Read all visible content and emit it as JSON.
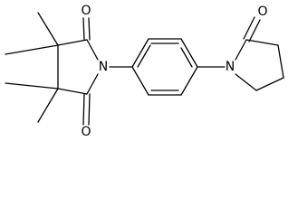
{
  "nodes": [
    {
      "label": "O"
    },
    {
      "label": "O"
    },
    {
      "label": "N"
    },
    {
      "label": "N"
    },
    {
      "label": "O"
    }
  ]
}
